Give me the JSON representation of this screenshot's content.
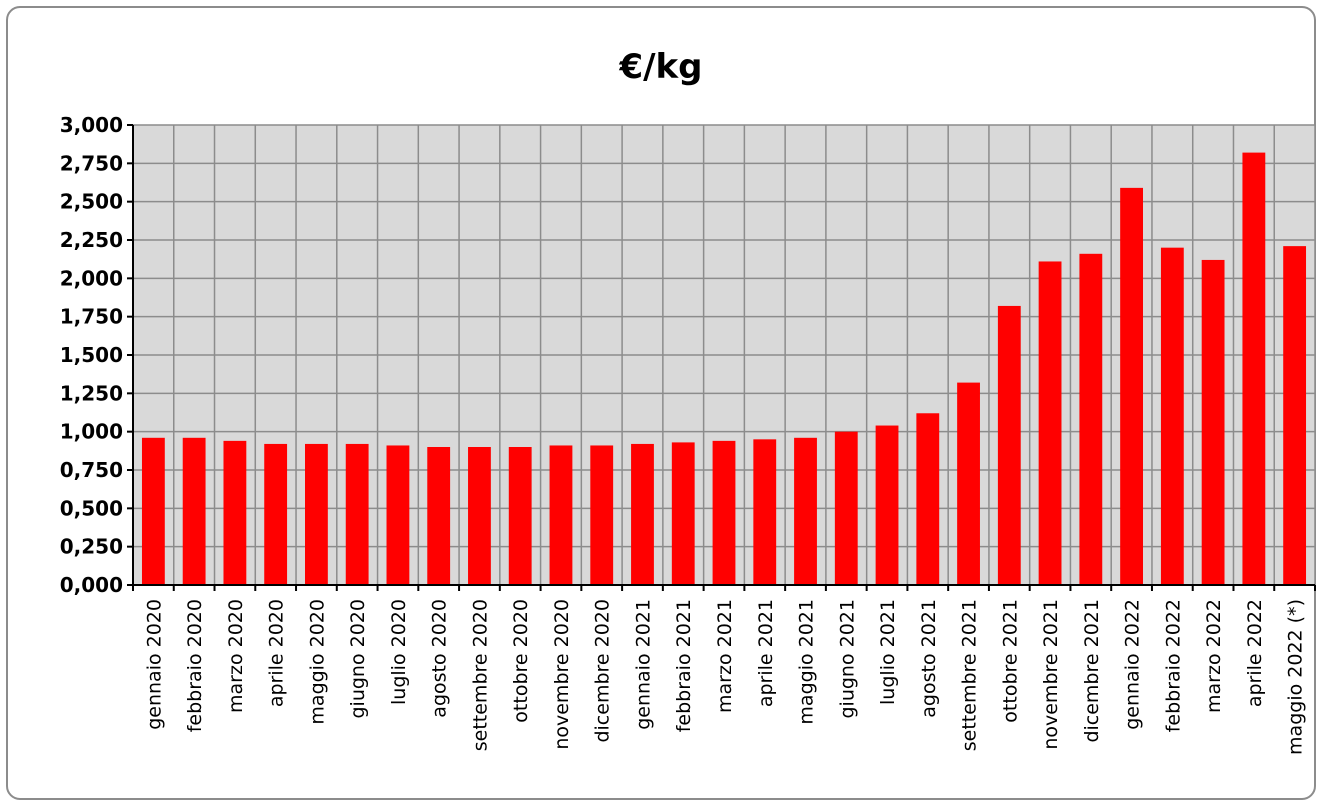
{
  "chart_data": {
    "type": "bar",
    "title": "€/kg",
    "xlabel": "",
    "ylabel": "",
    "ylim": [
      0,
      3
    ],
    "yticks": [
      "0,000",
      "0,250",
      "0,500",
      "0,750",
      "1,000",
      "1,250",
      "1,500",
      "1,750",
      "2,000",
      "2,250",
      "2,500",
      "2,750",
      "3,000"
    ],
    "grid": true,
    "legend": "none",
    "categories": [
      "gennaio 2020",
      "febbraio 2020",
      "marzo 2020",
      "aprile 2020",
      "maggio 2020",
      "giugno 2020",
      "luglio 2020",
      "agosto 2020",
      "settembre 2020",
      "ottobre 2020",
      "novembre 2020",
      "dicembre 2020",
      "gennaio 2021",
      "febbraio 2021",
      "marzo 2021",
      "aprile 2021",
      "maggio 2021",
      "giugno 2021",
      "luglio 2021",
      "agosto 2021",
      "settembre 2021",
      "ottobre 2021",
      "novembre 2021",
      "dicembre 2021",
      "gennaio 2022",
      "febbraio 2022",
      "marzo 2022",
      "aprile 2022",
      "maggio 2022 (*)"
    ],
    "values": [
      0.96,
      0.96,
      0.94,
      0.92,
      0.92,
      0.92,
      0.91,
      0.9,
      0.9,
      0.9,
      0.91,
      0.91,
      0.92,
      0.93,
      0.94,
      0.95,
      0.96,
      1.0,
      1.04,
      1.12,
      1.32,
      1.82,
      2.11,
      2.16,
      2.59,
      2.2,
      2.12,
      2.82,
      2.21
    ],
    "colors": {
      "bar": "#ff0000",
      "plot_background": "#d9d9d9",
      "grid": "#8c8c8c",
      "frame": "#8c8c8c"
    }
  }
}
